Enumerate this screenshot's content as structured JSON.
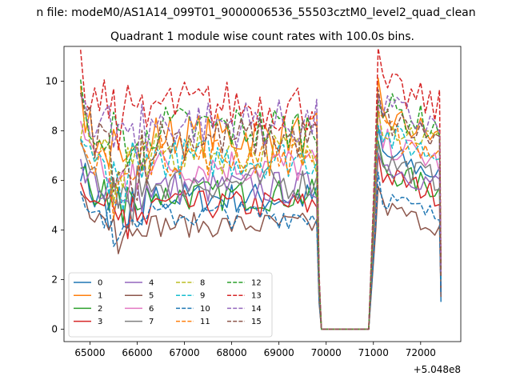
{
  "figure": {
    "suptitle": "n file: modeM0/AS1A14_099T01_9000006536_55503cztM0_level2_quad_clean",
    "title": "Quadrant 1 module wise count rates with 100.0s bins."
  },
  "chart_data": {
    "type": "line",
    "title": "Quadrant 1 module wise count rates with 100.0s bins.",
    "xlabel": "",
    "ylabel": "",
    "x_offset_label": "+5.048e8",
    "xlim": [
      64450,
      72850
    ],
    "ylim": [
      -0.5,
      11.4
    ],
    "x_ticks": [
      65000,
      66000,
      67000,
      68000,
      69000,
      70000,
      71000,
      72000
    ],
    "x_tick_labels": [
      "65000",
      "66000",
      "67000",
      "68000",
      "69000",
      "70000",
      "71000",
      "72000"
    ],
    "y_ticks": [
      0,
      2,
      4,
      6,
      8,
      10
    ],
    "y_tick_labels": [
      "0",
      "2",
      "4",
      "6",
      "8",
      "10"
    ],
    "grid": false,
    "legend": {
      "placement": "lower-left",
      "columns": 4
    },
    "gap": {
      "drop_start": 69800,
      "zero_from": 69900,
      "zero_to": 70900,
      "recover": 71000
    },
    "segment1_x_range": [
      64800,
      69800
    ],
    "segment2_x_range": [
      71100,
      72400
    ],
    "series": [
      {
        "name": "0",
        "color": "#1f77b4",
        "dash": "solid",
        "level1": 5.3,
        "level2": 7.1,
        "final": 1.1
      },
      {
        "name": "1",
        "color": "#ff7f0e",
        "dash": "solid",
        "level1": 7.8,
        "level2": 8.6,
        "final": 2.2
      },
      {
        "name": "2",
        "color": "#2ca02c",
        "dash": "solid",
        "level1": 5.4,
        "level2": 6.5,
        "final": 1.6
      },
      {
        "name": "3",
        "color": "#d62728",
        "dash": "solid",
        "level1": 5.0,
        "level2": 6.3,
        "final": 1.5
      },
      {
        "name": "4",
        "color": "#9467bd",
        "dash": "solid",
        "level1": 5.7,
        "level2": 6.7,
        "final": 1.8
      },
      {
        "name": "5",
        "color": "#8c564b",
        "dash": "solid",
        "level1": 4.2,
        "level2": 5.0,
        "final": 1.3
      },
      {
        "name": "6",
        "color": "#e377c2",
        "dash": "solid",
        "level1": 6.6,
        "level2": 7.6,
        "final": 2.0
      },
      {
        "name": "7",
        "color": "#7f7f7f",
        "dash": "solid",
        "level1": 5.9,
        "level2": 6.9,
        "final": 1.9
      },
      {
        "name": "8",
        "color": "#bcbd22",
        "dash": "dashed",
        "level1": 7.1,
        "level2": 8.4,
        "final": 2.1
      },
      {
        "name": "9",
        "color": "#17becf",
        "dash": "dashed",
        "level1": 6.9,
        "level2": 7.9,
        "final": 2.0
      },
      {
        "name": "10",
        "color": "#1f77b4",
        "dash": "dashed",
        "level1": 4.6,
        "level2": 5.4,
        "final": 1.4
      },
      {
        "name": "11",
        "color": "#ff7f0e",
        "dash": "dashed",
        "level1": 7.0,
        "level2": 8.0,
        "final": 2.2
      },
      {
        "name": "12",
        "color": "#2ca02c",
        "dash": "dashed",
        "level1": 8.1,
        "level2": 9.0,
        "final": 2.4
      },
      {
        "name": "13",
        "color": "#d62728",
        "dash": "dashed",
        "level1": 9.0,
        "level2": 9.8,
        "final": 2.6
      },
      {
        "name": "14",
        "color": "#9467bd",
        "dash": "dashed",
        "level1": 8.3,
        "level2": 9.0,
        "final": 2.3
      },
      {
        "name": "15",
        "color": "#8c564b",
        "dash": "dashed",
        "level1": 7.7,
        "level2": 8.5,
        "final": 2.1
      }
    ]
  }
}
